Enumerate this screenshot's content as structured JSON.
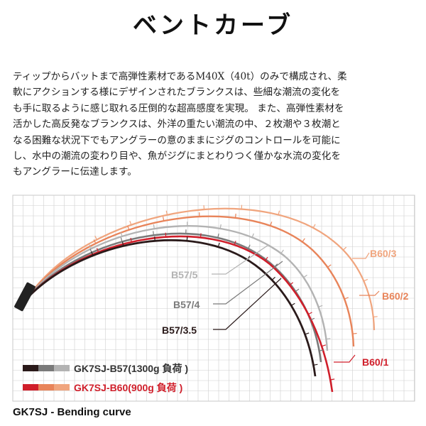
{
  "title": "ベントカーブ",
  "description_lines": [
    "ティップからバットまで高弾性素材であるM40X（40t）のみで構成され、柔",
    "軟にアクションする様にデザインされたブランクスは、些細な潮流の変化を",
    "も手に取るように感じ取れる圧倒的な超高感度を実現。 また、高弾性素材を",
    "活かした高反発なブランクスは、外洋の重たい潮流の中、２枚潮や３枚潮と",
    "なる困難な状況下でもアングラーの意のままにジグのコントロールを可能に",
    "し、水中の潮流の変わり目や、魚がジグにまとわりつく僅かな水流の変化を",
    "もアングラーに伝達します。"
  ],
  "curves": [
    {
      "label": "B60/3",
      "color": "#f0a57e"
    },
    {
      "label": "B60/2",
      "color": "#e8845a"
    },
    {
      "label": "B57/5",
      "color": "#b3b3b3"
    },
    {
      "label": "B57/4",
      "color": "#7a7a7a"
    },
    {
      "label": "B60/1",
      "color": "#d01e2a"
    },
    {
      "label": "B57/3.5",
      "color": "#2a1a1a"
    }
  ],
  "legend": [
    {
      "label": "GK7SJ-B57(1300g 負荷 )",
      "color": "#333333",
      "swatch": [
        "#2a1a1a",
        "#7a7a7a",
        "#b3b3b3"
      ]
    },
    {
      "label": "GK7SJ-B60(900g 負荷 )",
      "color": "#d01e2a",
      "swatch": [
        "#d01e2a",
        "#e8845a",
        "#f0a57e"
      ]
    }
  ],
  "caption": "GK7SJ - Bending curve",
  "colors": {
    "grid": "#cfcfcf",
    "border": "#c8c8c8",
    "handle": "#222222"
  }
}
